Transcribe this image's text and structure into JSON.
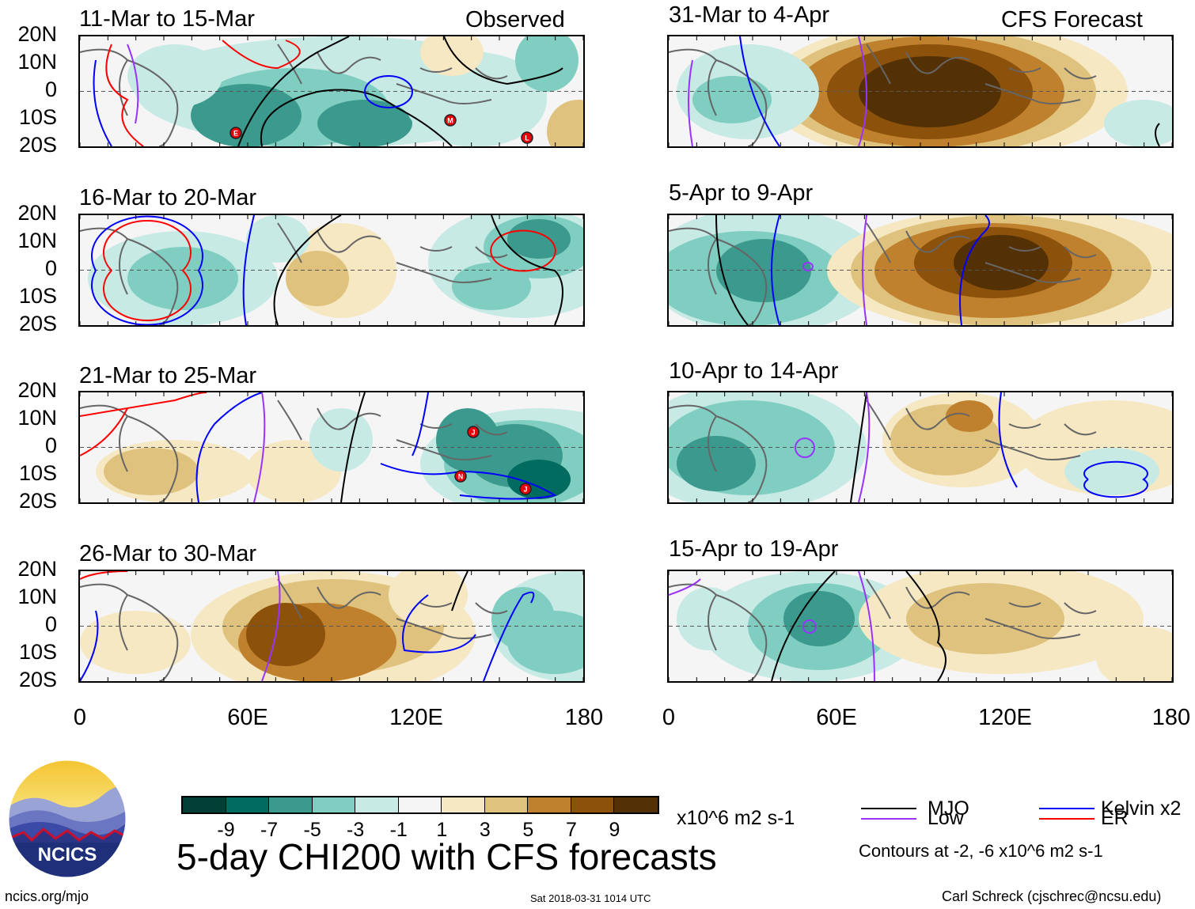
{
  "main_title": "5-day CHI200 with CFS forecasts",
  "observed_label": "Observed",
  "forecast_label": "CFS Forecast",
  "latitude_labels": [
    "20N",
    "10N",
    "0",
    "10S",
    "20S"
  ],
  "longitude_labels": [
    "0",
    "60E",
    "120E",
    "180"
  ],
  "panels_observed": [
    {
      "title": "11-Mar to 15-Mar",
      "storms": [
        "E",
        "M",
        "L"
      ]
    },
    {
      "title": "16-Mar to 20-Mar",
      "storms": []
    },
    {
      "title": "21-Mar to 25-Mar",
      "storms": [
        "J",
        "N",
        "J"
      ]
    },
    {
      "title": "26-Mar to 30-Mar",
      "storms": []
    }
  ],
  "panels_forecast": [
    {
      "title": "31-Mar to 4-Apr"
    },
    {
      "title": "5-Apr to 9-Apr"
    },
    {
      "title": "10-Apr to 14-Apr"
    },
    {
      "title": "15-Apr to 19-Apr"
    }
  ],
  "colorbar": {
    "ticks": [
      "-9",
      "-7",
      "-5",
      "-3",
      "-1",
      "1",
      "3",
      "5",
      "7",
      "9"
    ],
    "units": "x10^6 m2 s-1",
    "colors": [
      "#013f37",
      "#016b60",
      "#3b9a8d",
      "#80cdc1",
      "#c7eae5",
      "#f5f5f5",
      "#f6e8c3",
      "#dfc27d",
      "#bf812d",
      "#8c510a",
      "#543005"
    ]
  },
  "legend": {
    "items": [
      {
        "label": "MJO",
        "color": "#000000"
      },
      {
        "label": "Kelvin x2",
        "color": "#0000ff"
      },
      {
        "label": "Low",
        "color": "#9933ff"
      },
      {
        "label": "ER",
        "color": "#ff0000"
      }
    ],
    "contours_note": "Contours at -2, -6 x10^6 m2 s-1"
  },
  "logo_text": "NCICS",
  "footer": {
    "url": "ncics.org/mjo",
    "timestamp": "Sat 2018-03-31 1014 UTC",
    "credit": "Carl Schreck (cjschrec@ncsu.edu)"
  }
}
